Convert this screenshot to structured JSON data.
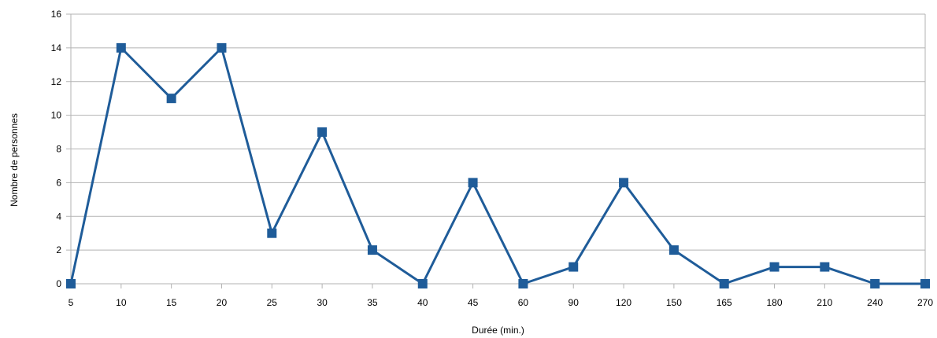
{
  "chart_data": {
    "type": "line",
    "title": "",
    "xlabel": "Durée (min.)",
    "ylabel": "Nombre de personnes",
    "categories": [
      "5",
      "10",
      "15",
      "20",
      "25",
      "30",
      "35",
      "40",
      "45",
      "60",
      "90",
      "120",
      "150",
      "165",
      "180",
      "210",
      "240",
      "270"
    ],
    "series": [
      {
        "values": [
          0,
          14,
          11,
          14,
          3,
          9,
          2,
          0,
          6,
          0,
          1,
          6,
          2,
          0,
          1,
          1,
          0,
          0
        ]
      }
    ],
    "ylim": [
      0,
      16
    ],
    "yticks": [
      0,
      2,
      4,
      6,
      8,
      10,
      12,
      14,
      16
    ],
    "grid": true,
    "legend": "none",
    "colors": {
      "series": "#1f5c99",
      "grid": "#b3b3b3",
      "axis": "#b3b3b3"
    }
  }
}
